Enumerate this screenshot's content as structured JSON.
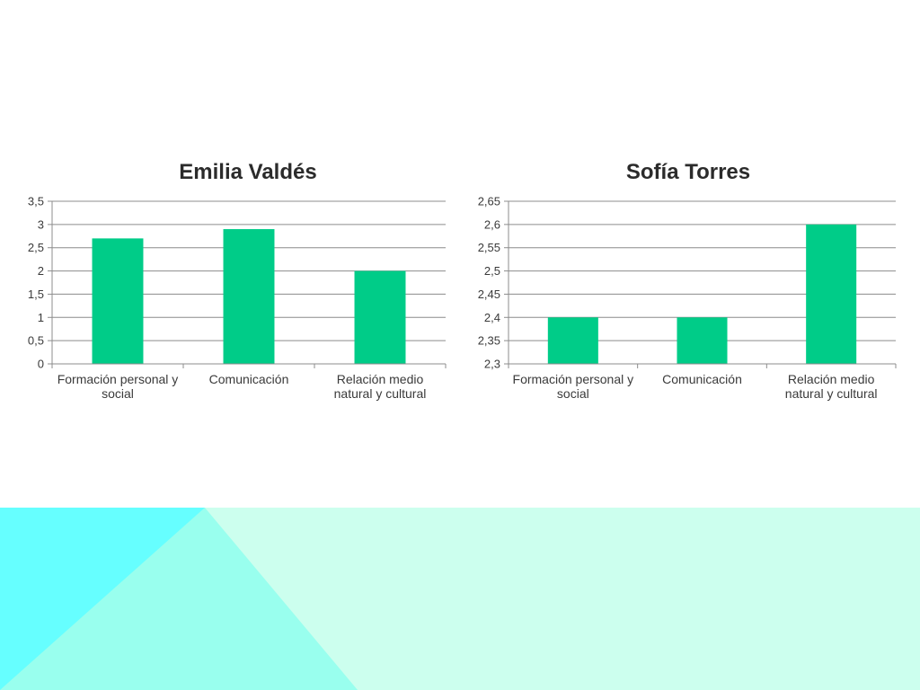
{
  "colors": {
    "bar": "#00cc88",
    "grid": "#8c8c8c",
    "axis": "#8c8c8c",
    "text": "#3a3a3a",
    "title": "#2b2b2b",
    "band_light": "#ccffee",
    "band_cyan": "#66ffff",
    "band_mid": "#99ffee"
  },
  "chart_data": [
    {
      "type": "bar",
      "title": "Emilia Valdés",
      "categories": [
        [
          "Formación personal y",
          "social"
        ],
        [
          "Comunicación"
        ],
        [
          "Relación medio",
          "natural y cultural"
        ]
      ],
      "values": [
        2.7,
        2.9,
        2.0
      ],
      "ylim": [
        0,
        3.5
      ],
      "yticks": [
        "0",
        "0,5",
        "1",
        "1,5",
        "2",
        "2,5",
        "3",
        "3,5"
      ],
      "ytick_values": [
        0,
        0.5,
        1,
        1.5,
        2,
        2.5,
        3,
        3.5
      ],
      "grid": true,
      "legend": "none"
    },
    {
      "type": "bar",
      "title": "Sofía Torres",
      "categories": [
        [
          "Formación personal y",
          "social"
        ],
        [
          "Comunicación"
        ],
        [
          "Relación medio",
          "natural y cultural"
        ]
      ],
      "values": [
        2.4,
        2.4,
        2.6
      ],
      "ylim": [
        2.3,
        2.65
      ],
      "yticks": [
        "2,3",
        "2,35",
        "2,4",
        "2,45",
        "2,5",
        "2,55",
        "2,6",
        "2,65"
      ],
      "ytick_values": [
        2.3,
        2.35,
        2.4,
        2.45,
        2.5,
        2.55,
        2.6,
        2.65
      ],
      "grid": true,
      "legend": "none"
    }
  ]
}
